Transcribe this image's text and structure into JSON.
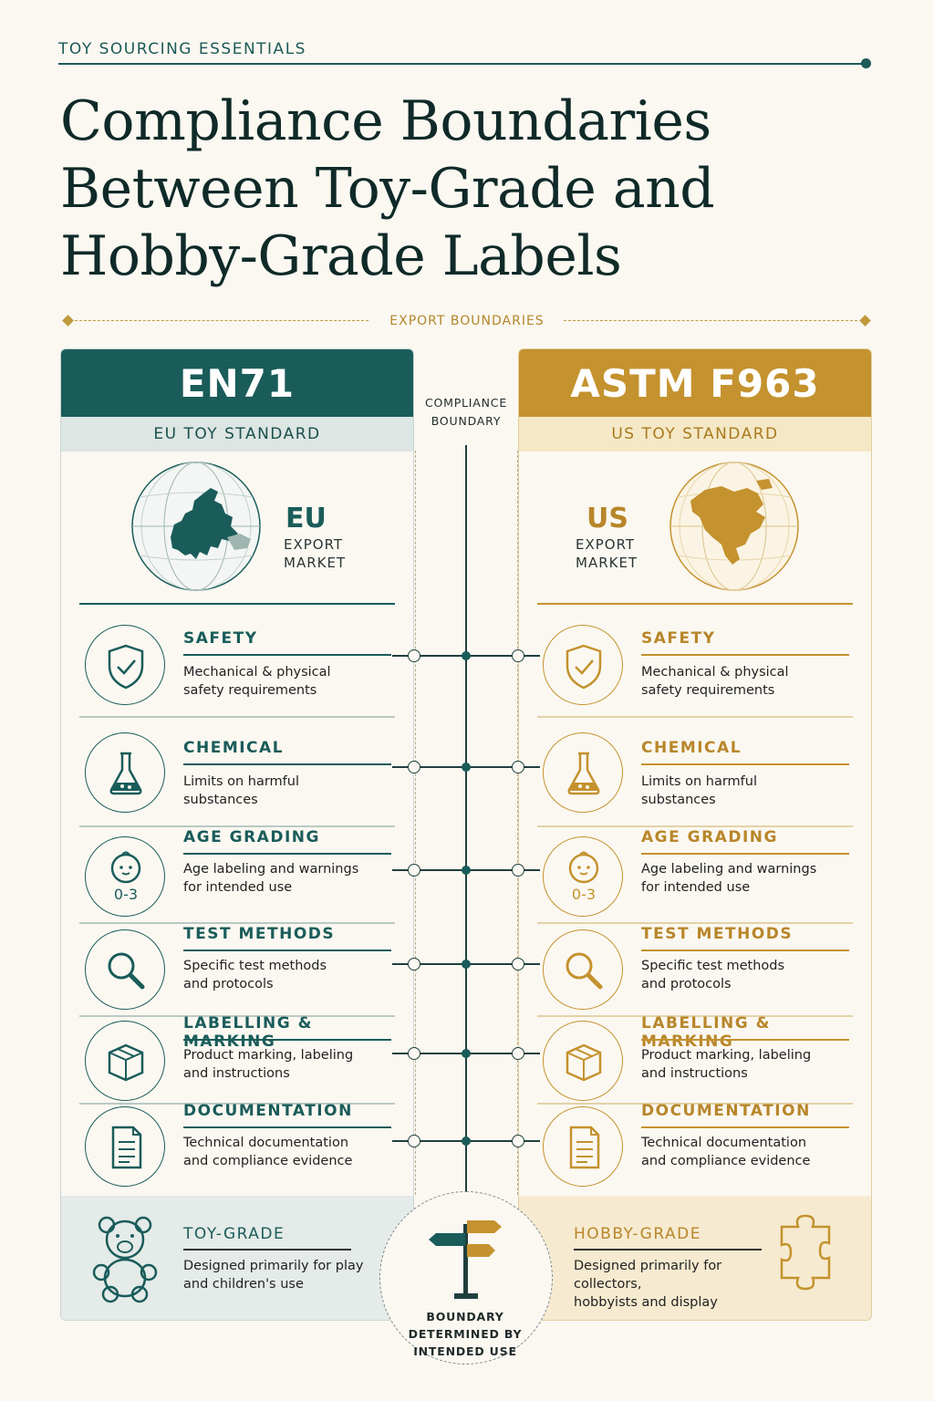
{
  "kicker": "TOY SOURCING ESSENTIALS",
  "title": "Compliance Boundaries Between Toy-Grade and Hobby-Grade Labels",
  "section_label": "EXPORT BOUNDARIES",
  "center": {
    "top_label_line1": "COMPLIANCE",
    "top_label_line2": "BOUNDARY",
    "bottom_label_line1": "BOUNDARY",
    "bottom_label_line2": "DETERMINED BY",
    "bottom_label_line3": "INTENDED USE"
  },
  "colors": {
    "teal": "#1a5c5a",
    "gold": "#c4922e",
    "background": "#fbf8f1"
  },
  "eu": {
    "standard": "EN71",
    "subtitle": "EU TOY STANDARD",
    "market_code": "EU",
    "market_line1": "EXPORT",
    "market_line2": "MARKET",
    "rows": [
      {
        "icon": "shield-check-icon",
        "title": "SAFETY",
        "desc_line1": "Mechanical & physical",
        "desc_line2": "safety requirements"
      },
      {
        "icon": "flask-icon",
        "title": "CHEMICAL",
        "desc_line1": "Limits on harmful",
        "desc_line2": "substances"
      },
      {
        "icon": "baby-face-icon",
        "badge": "0-3",
        "title": "AGE GRADING",
        "desc_line1": "Age labeling and warnings",
        "desc_line2": "for intended use"
      },
      {
        "icon": "magnifier-icon",
        "title": "TEST METHODS",
        "desc_line1": "Specific test methods",
        "desc_line2": "and protocols"
      },
      {
        "icon": "box-icon",
        "title": "LABELLING & MARKING",
        "desc_line1": "Product marking, labeling",
        "desc_line2": "and instructions"
      },
      {
        "icon": "document-icon",
        "title": "DOCUMENTATION",
        "desc_line1": "Technical documentation",
        "desc_line2": "and compliance evidence"
      }
    ],
    "footer": {
      "icon": "teddy-bear-icon",
      "title": "TOY-GRADE",
      "desc_line1": "Designed primarily for play",
      "desc_line2": "and children's use"
    }
  },
  "us": {
    "standard": "ASTM F963",
    "subtitle": "US TOY STANDARD",
    "market_code": "US",
    "market_line1": "EXPORT",
    "market_line2": "MARKET",
    "rows": [
      {
        "icon": "shield-check-icon",
        "title": "SAFETY",
        "desc_line1": "Mechanical & physical",
        "desc_line2": "safety requirements"
      },
      {
        "icon": "flask-icon",
        "title": "CHEMICAL",
        "desc_line1": "Limits on harmful",
        "desc_line2": "substances"
      },
      {
        "icon": "baby-face-icon",
        "badge": "0-3",
        "title": "AGE GRADING",
        "desc_line1": "Age labeling and warnings",
        "desc_line2": "for intended use"
      },
      {
        "icon": "magnifier-icon",
        "title": "TEST METHODS",
        "desc_line1": "Specific test methods",
        "desc_line2": "and protocols"
      },
      {
        "icon": "box-icon",
        "title": "LABELLING & MARKING",
        "desc_line1": "Product marking, labeling",
        "desc_line2": "and instructions"
      },
      {
        "icon": "document-icon",
        "title": "DOCUMENTATION",
        "desc_line1": "Technical documentation",
        "desc_line2": "and compliance evidence"
      }
    ],
    "footer": {
      "icon": "puzzle-piece-icon",
      "title": "HOBBY-GRADE",
      "desc_line1": "Designed primarily for collectors,",
      "desc_line2": "hobbyists and display"
    }
  }
}
